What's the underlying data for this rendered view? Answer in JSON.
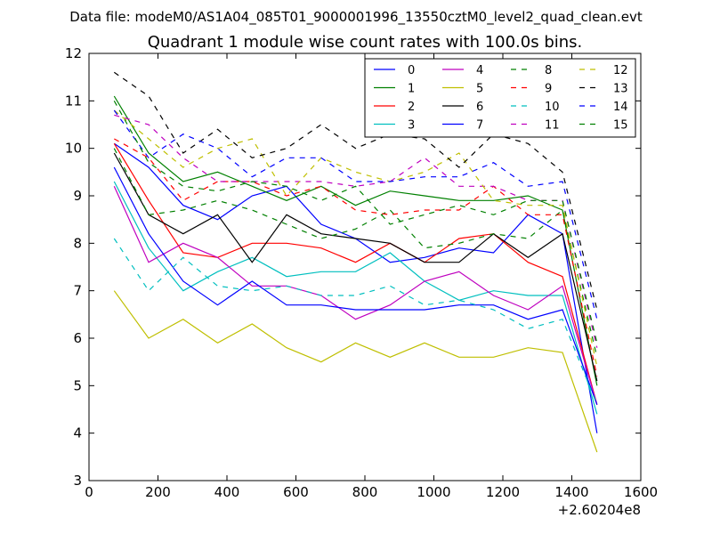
{
  "chart_data": {
    "type": "line",
    "supertitle": "Data file: modeM0/AS1A04_085T01_9000001996_13550cztM0_level2_quad_clean.evt",
    "title": "Quadrant 1 module wise count rates with 100.0s bins.",
    "xlabel": "",
    "ylabel": "",
    "x_offset_label": "+2.60204e8",
    "xlim": [
      0,
      1600
    ],
    "ylim": [
      3,
      12
    ],
    "x_ticks": [
      0,
      200,
      400,
      600,
      800,
      1000,
      1200,
      1400,
      1600
    ],
    "y_ticks": [
      3,
      4,
      5,
      6,
      7,
      8,
      9,
      10,
      11,
      12
    ],
    "grid": false,
    "legend_position": "top-right",
    "legend_columns": 4,
    "x": [
      73,
      173,
      273,
      373,
      473,
      573,
      673,
      773,
      873,
      973,
      1073,
      1173,
      1273,
      1373,
      1473
    ],
    "series": [
      {
        "name": "0",
        "color": "#0000ff",
        "dash": "solid",
        "values": [
          10.1,
          9.6,
          8.8,
          8.5,
          9.0,
          9.2,
          8.4,
          8.1,
          7.6,
          7.7,
          7.9,
          7.8,
          8.6,
          8.2,
          4.0
        ]
      },
      {
        "name": "1",
        "color": "#008000",
        "dash": "solid",
        "values": [
          11.1,
          9.9,
          9.3,
          9.5,
          9.2,
          8.9,
          9.2,
          8.8,
          9.1,
          9.0,
          8.9,
          8.9,
          9.0,
          8.7,
          5.0
        ]
      },
      {
        "name": "2",
        "color": "#ff0000",
        "dash": "solid",
        "values": [
          10.1,
          8.9,
          7.8,
          7.7,
          8.0,
          8.0,
          7.9,
          7.6,
          8.0,
          7.6,
          8.1,
          8.2,
          7.6,
          7.3,
          4.6
        ]
      },
      {
        "name": "3",
        "color": "#00bfbf",
        "dash": "solid",
        "values": [
          9.3,
          7.9,
          7.0,
          7.4,
          7.7,
          7.3,
          7.4,
          7.4,
          7.8,
          7.2,
          6.8,
          7.0,
          6.9,
          6.9,
          4.4
        ]
      },
      {
        "name": "4",
        "color": "#bf00bf",
        "dash": "solid",
        "values": [
          9.2,
          7.6,
          8.0,
          7.7,
          7.1,
          7.1,
          6.9,
          6.4,
          6.7,
          7.2,
          7.4,
          6.9,
          6.6,
          7.1,
          4.6
        ]
      },
      {
        "name": "5",
        "color": "#bfbf00",
        "dash": "solid",
        "values": [
          7.0,
          6.0,
          6.4,
          5.9,
          6.3,
          5.8,
          5.5,
          5.9,
          5.6,
          5.9,
          5.6,
          5.6,
          5.8,
          5.7,
          3.6
        ]
      },
      {
        "name": "6",
        "color": "#000000",
        "dash": "solid",
        "values": [
          9.9,
          8.6,
          8.2,
          8.6,
          7.6,
          8.6,
          8.2,
          8.1,
          8.0,
          7.6,
          7.6,
          8.2,
          7.7,
          8.2,
          5.1
        ]
      },
      {
        "name": "7",
        "color": "#0000ff",
        "dash": "solid",
        "values": [
          9.6,
          8.2,
          7.2,
          6.7,
          7.2,
          6.7,
          6.7,
          6.6,
          6.6,
          6.6,
          6.7,
          6.7,
          6.4,
          6.6,
          4.6
        ]
      },
      {
        "name": "8",
        "color": "#008000",
        "dash": "dashed",
        "values": [
          10.0,
          8.6,
          8.7,
          8.9,
          8.7,
          8.4,
          8.1,
          8.3,
          8.7,
          7.9,
          8.0,
          8.2,
          8.1,
          8.7,
          5.6
        ]
      },
      {
        "name": "9",
        "color": "#ff0000",
        "dash": "dashed",
        "values": [
          10.2,
          9.8,
          8.9,
          9.3,
          9.3,
          9.0,
          9.2,
          8.7,
          8.6,
          8.7,
          8.7,
          9.2,
          8.6,
          8.6,
          5.2
        ]
      },
      {
        "name": "10",
        "color": "#00bfbf",
        "dash": "dashed",
        "values": [
          8.1,
          7.0,
          7.7,
          7.1,
          7.0,
          7.1,
          6.9,
          6.9,
          7.1,
          6.7,
          6.8,
          6.6,
          6.2,
          6.4,
          4.6
        ]
      },
      {
        "name": "11",
        "color": "#bf00bf",
        "dash": "dashed",
        "values": [
          10.7,
          10.5,
          9.8,
          9.3,
          9.3,
          9.3,
          9.3,
          9.2,
          9.3,
          9.8,
          9.2,
          9.2,
          8.9,
          8.9,
          5.8
        ]
      },
      {
        "name": "12",
        "color": "#bfbf00",
        "dash": "dashed",
        "values": [
          10.8,
          10.2,
          9.6,
          10.0,
          10.2,
          9.0,
          9.8,
          9.5,
          9.3,
          9.5,
          9.9,
          8.9,
          8.8,
          8.8,
          5.4
        ]
      },
      {
        "name": "13",
        "color": "#000000",
        "dash": "dashed",
        "values": [
          11.6,
          11.1,
          9.9,
          10.4,
          9.8,
          10.0,
          10.5,
          10.0,
          10.3,
          10.2,
          9.6,
          10.3,
          10.1,
          9.5,
          6.6
        ]
      },
      {
        "name": "14",
        "color": "#0000ff",
        "dash": "dashed",
        "values": [
          10.8,
          9.8,
          10.3,
          10.0,
          9.4,
          9.8,
          9.8,
          9.3,
          9.3,
          9.4,
          9.4,
          9.7,
          9.2,
          9.3,
          6.4
        ]
      },
      {
        "name": "15",
        "color": "#008000",
        "dash": "dashed",
        "values": [
          11.0,
          9.7,
          9.2,
          9.1,
          9.3,
          9.2,
          8.9,
          9.2,
          8.4,
          8.6,
          8.8,
          8.6,
          8.9,
          8.9,
          5.9
        ]
      }
    ]
  }
}
